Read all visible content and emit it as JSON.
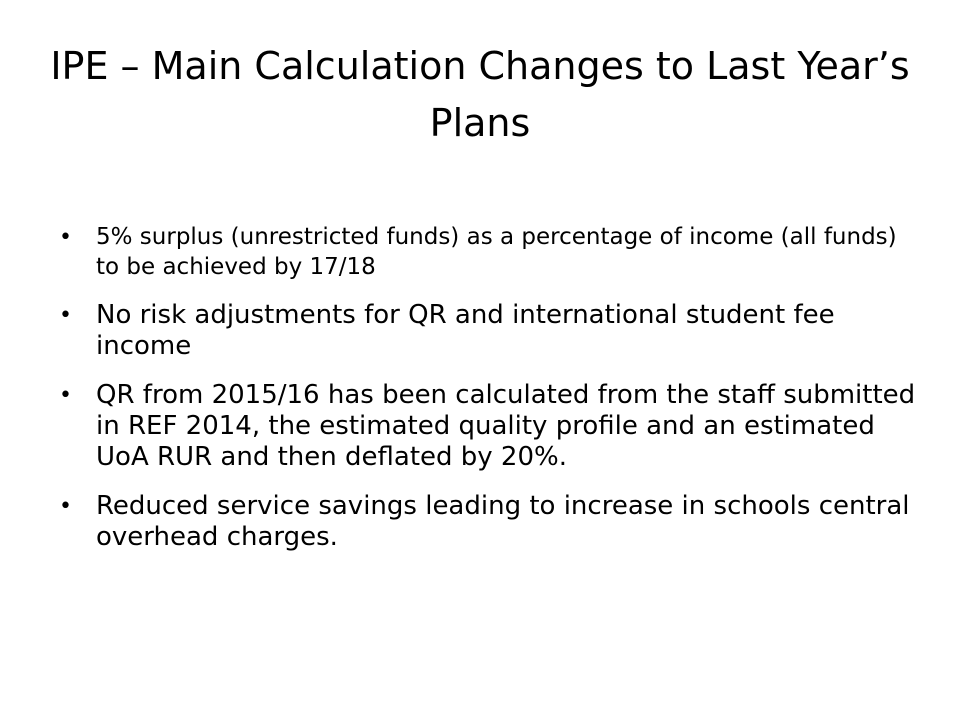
{
  "slide": {
    "title": "IPE – Main Calculation Changes to Last Year’s Plans",
    "bullet_glyph": "•",
    "bullets": [
      {
        "text": "5% surplus (unrestricted funds) as a percentage of income (all funds) to be achieved by 17/18"
      },
      {
        "text": "No risk adjustments for QR and international student fee income"
      },
      {
        "text": "QR from 2015/16 has been calculated from the staff submitted in REF 2014, the estimated quality profile and an estimated UoA RUR and then deflated by 20%."
      },
      {
        "text": "Reduced service savings leading to increase in schools central overhead charges."
      }
    ]
  }
}
